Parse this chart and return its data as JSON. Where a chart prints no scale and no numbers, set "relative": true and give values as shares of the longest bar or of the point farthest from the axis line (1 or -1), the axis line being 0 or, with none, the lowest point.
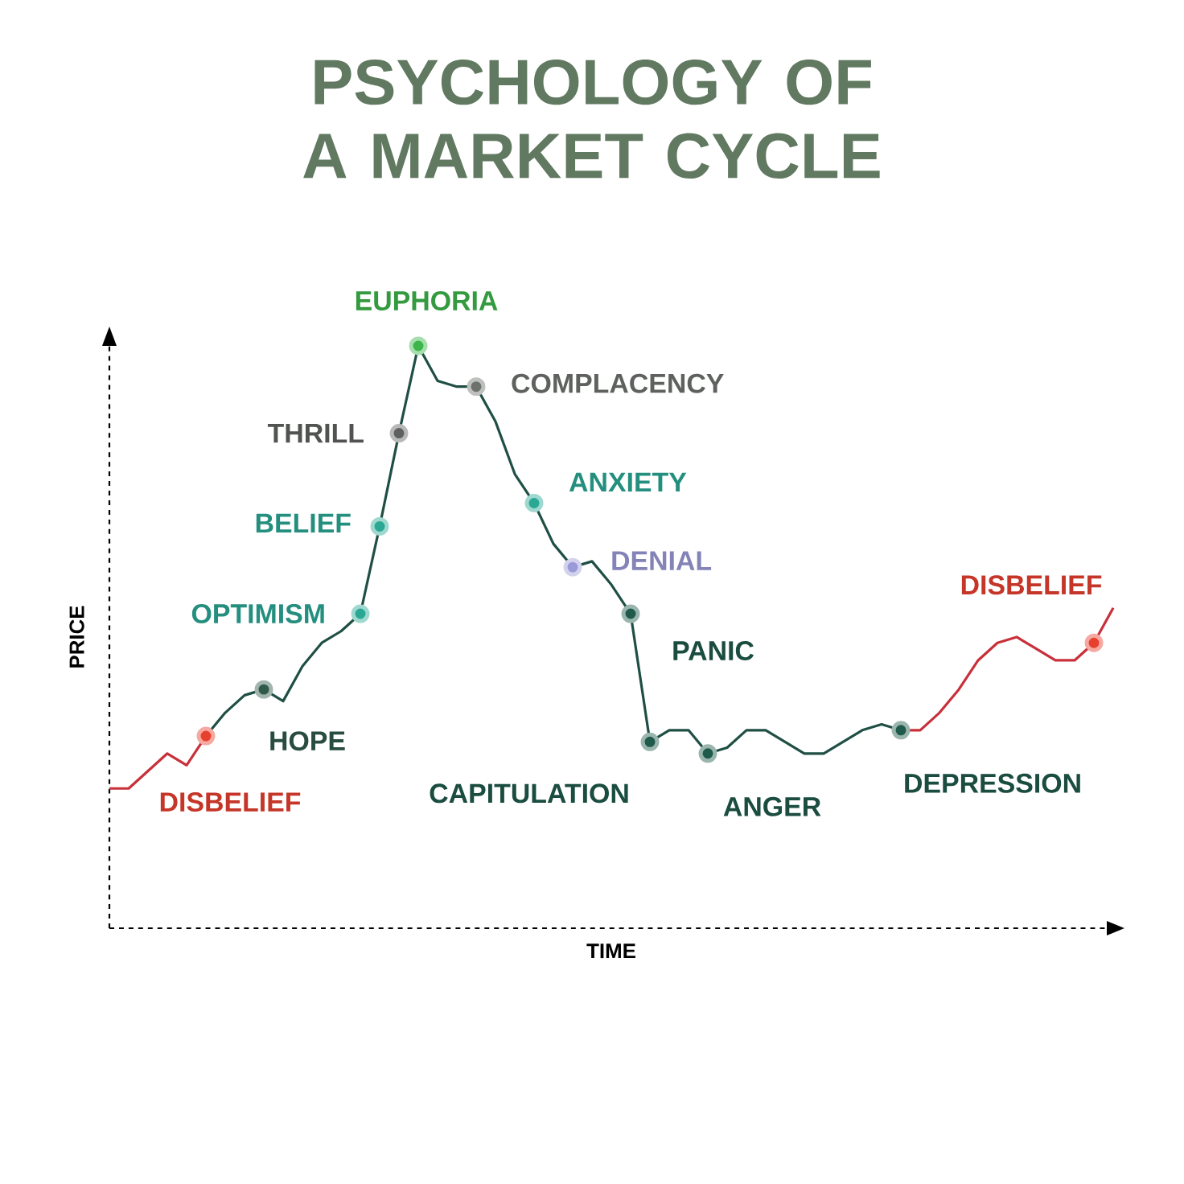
{
  "chart_data": {
    "type": "line",
    "title": "PSYCHOLOGY OF A MARKET CYCLE",
    "xlabel": "TIME",
    "ylabel": "PRICE",
    "relative": true,
    "categories": [
      null,
      null,
      null,
      null,
      null,
      null,
      null,
      null,
      null,
      null,
      null,
      null,
      null,
      null,
      null,
      null,
      null,
      null,
      null,
      null,
      null,
      null,
      null,
      null,
      null,
      null,
      null,
      null,
      null,
      null,
      null,
      null,
      null,
      null,
      null,
      null,
      null,
      null,
      null,
      null,
      null,
      null,
      null,
      null,
      null,
      null,
      null,
      null,
      null,
      null,
      null,
      null,
      null
    ],
    "series": [
      {
        "color": "#c8303a",
        "values": [
          0.24,
          0.24,
          0.27,
          0.3,
          0.28,
          0.33,
          null,
          null,
          null,
          null,
          null,
          null,
          null,
          null,
          null,
          null,
          null,
          null,
          null,
          null,
          null,
          null,
          null,
          null,
          null,
          null,
          null,
          null,
          null,
          null,
          null,
          null,
          null,
          null,
          null,
          null,
          null,
          null,
          null,
          null,
          null,
          null,
          null,
          null,
          null,
          null,
          null,
          null,
          null,
          null,
          null,
          null,
          null
        ],
        "colors": [
          null,
          null,
          null,
          null,
          null,
          "#e8402f",
          null,
          null,
          null,
          null,
          null,
          null,
          null,
          null,
          null,
          null,
          null,
          null,
          null,
          null,
          null,
          null,
          null,
          null,
          null,
          null,
          null,
          null,
          null,
          null,
          null,
          null,
          null,
          null,
          null,
          null,
          null,
          null,
          null,
          null,
          null,
          null,
          null,
          null,
          null,
          null,
          null,
          null,
          null,
          null,
          null,
          null,
          null
        ]
      },
      {
        "color": "#1f4f44",
        "values": [
          null,
          null,
          null,
          null,
          null,
          0.33,
          0.37,
          0.4,
          0.41,
          0.39,
          0.45,
          0.49,
          0.51,
          0.54,
          0.69,
          0.85,
          1,
          0.94,
          0.93,
          0.93,
          0.87,
          0.78,
          0.73,
          0.66,
          0.62,
          0.63,
          0.59,
          0.54,
          0.32,
          0.34,
          0.34,
          0.3,
          0.31,
          0.34,
          0.34,
          0.32,
          0.3,
          0.3,
          0.32,
          0.34,
          0.35,
          0.34,
          null,
          null,
          null,
          null,
          null,
          null,
          null,
          null,
          null,
          null,
          null
        ],
        "colors": [
          null,
          null,
          null,
          null,
          null,
          null,
          null,
          null,
          "#2f5a4a",
          null,
          null,
          null,
          null,
          "#2aa894",
          "#2aa894",
          "#5e625e",
          "#3cb54a",
          null,
          null,
          "#6e726e",
          null,
          null,
          "#2aa894",
          null,
          "#9a9ad8",
          null,
          null,
          "#1f5a4a",
          "#1f5a4a",
          null,
          null,
          "#1f5a4a",
          null,
          null,
          null,
          null,
          null,
          null,
          null,
          null,
          null,
          "#1f5a4a",
          null,
          null,
          null,
          null,
          null,
          null,
          null,
          null,
          null,
          null,
          null
        ]
      },
      {
        "color": "#c8303a",
        "values": [
          null,
          null,
          null,
          null,
          null,
          null,
          null,
          null,
          null,
          null,
          null,
          null,
          null,
          null,
          null,
          null,
          null,
          null,
          null,
          null,
          null,
          null,
          null,
          null,
          null,
          null,
          null,
          null,
          null,
          null,
          null,
          null,
          null,
          null,
          null,
          null,
          null,
          null,
          null,
          null,
          null,
          0.34,
          0.34,
          0.37,
          0.41,
          0.46,
          0.49,
          0.5,
          0.48,
          0.46,
          0.46,
          0.49,
          0.55
        ],
        "colors": [
          null,
          null,
          null,
          null,
          null,
          null,
          null,
          null,
          null,
          null,
          null,
          null,
          null,
          null,
          null,
          null,
          null,
          null,
          null,
          null,
          null,
          null,
          null,
          null,
          null,
          null,
          null,
          null,
          null,
          null,
          null,
          null,
          null,
          null,
          null,
          null,
          null,
          null,
          null,
          null,
          null,
          null,
          null,
          null,
          null,
          null,
          null,
          null,
          null,
          null,
          null,
          "#e8402f",
          null
        ]
      }
    ],
    "annotations": [
      "DISBELIEF",
      "HOPE",
      "OPTIMISM",
      "BELIEF",
      "THRILL",
      "EUPHORIA",
      "COMPLACENCY",
      "ANXIETY",
      "DENIAL",
      "PANIC",
      "CAPITULATION",
      "ANGER",
      "DEPRESSION",
      "DISBELIEF"
    ]
  }
}
